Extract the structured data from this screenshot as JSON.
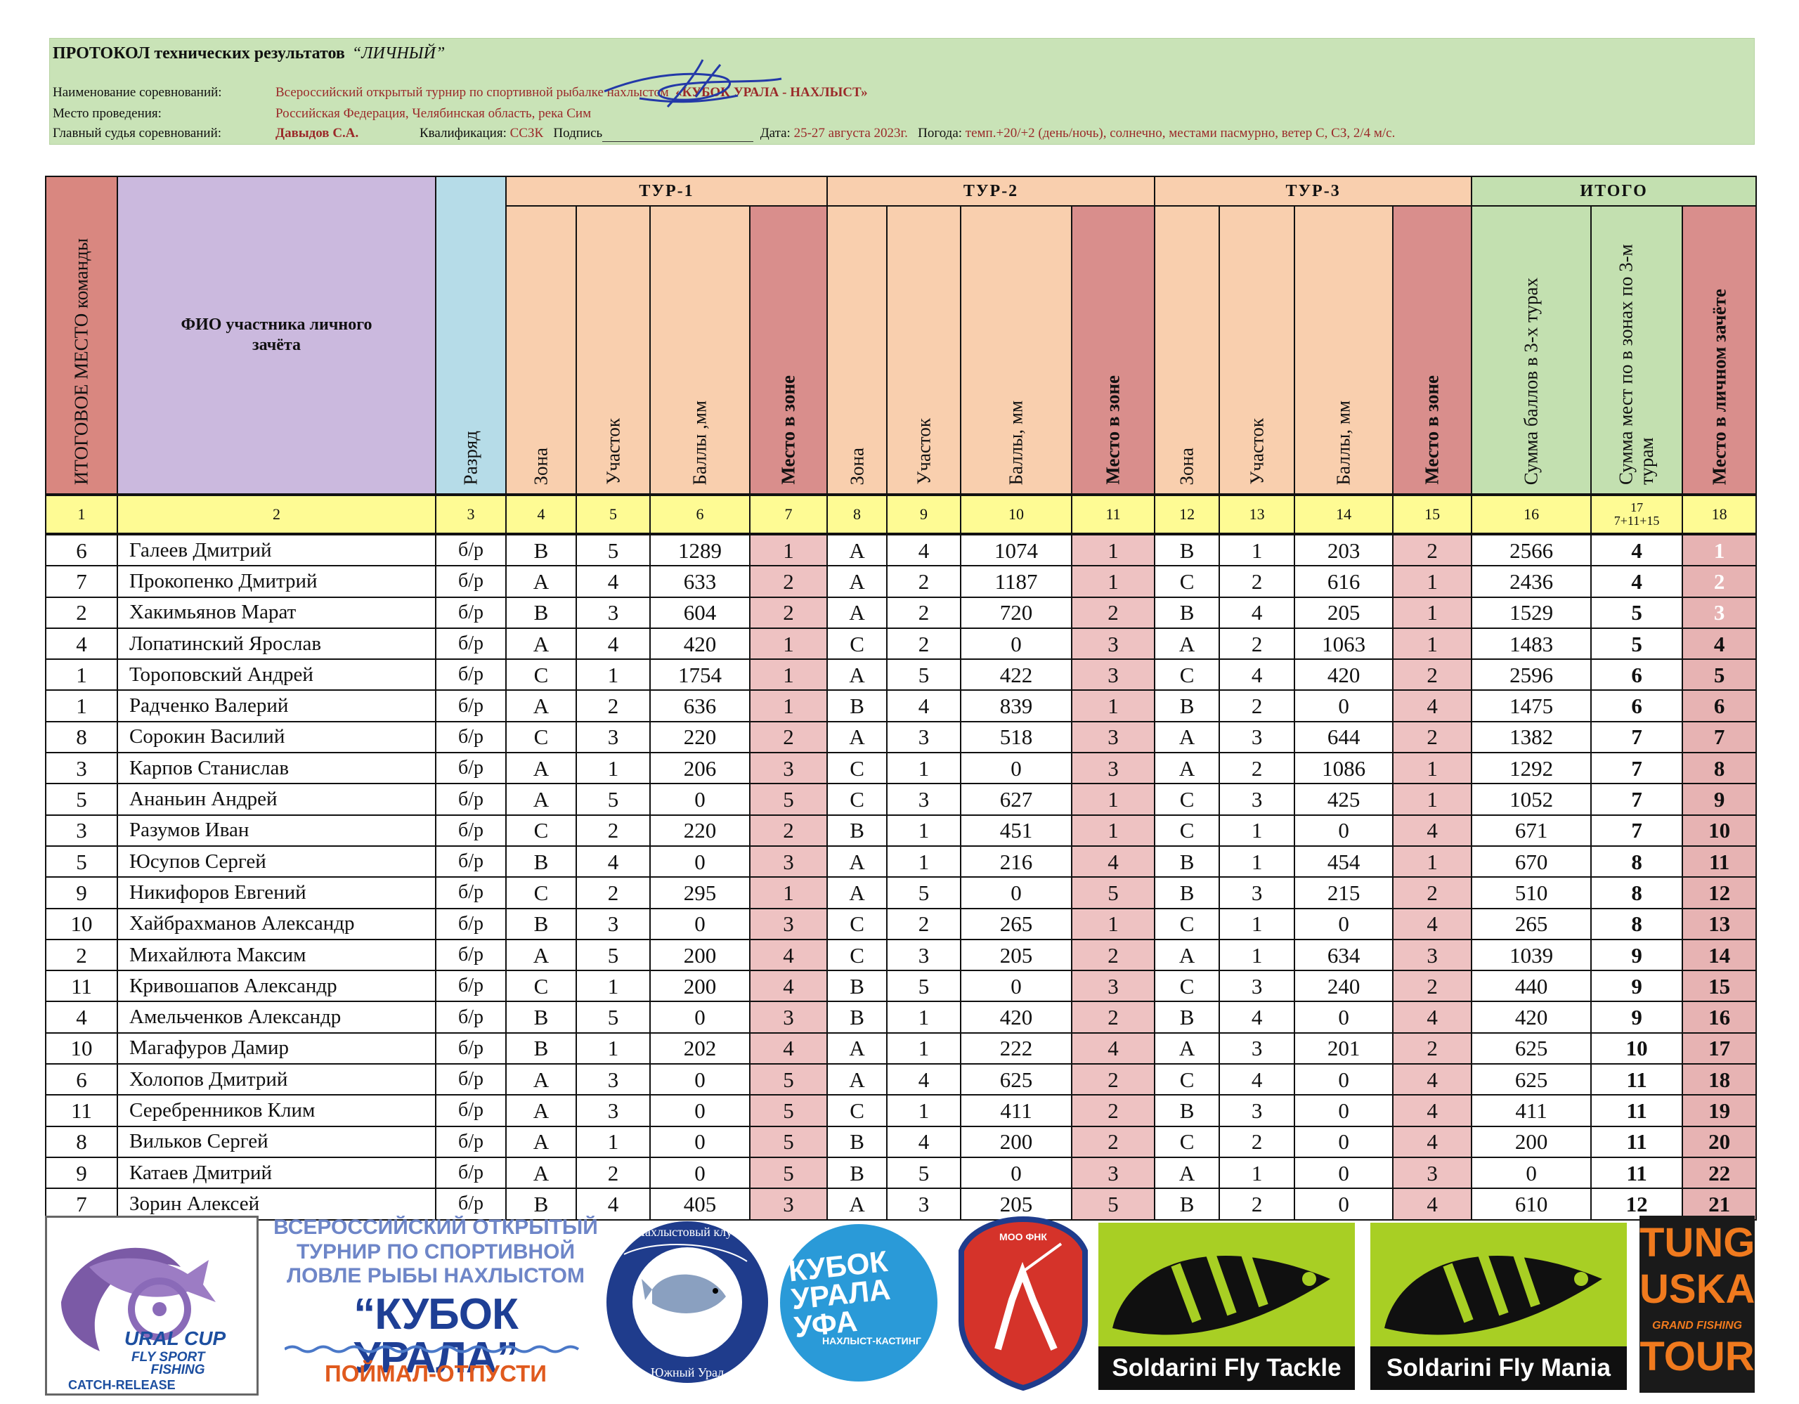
{
  "header": {
    "title_main": "ПРОТОКОЛ технических результатов",
    "title_type": "“ЛИЧНЫЙ”",
    "competition_label": "Наименование соревнований:",
    "competition_value": "Всероссийский открытый  турнир по спортивной рыбалке нахлыстом",
    "competition_name": "«КУБОК  УРАЛА - НАХЛЫСТ»",
    "place_label": "Место проведения:",
    "place_value": "Российская Федерация, Челябинская область, река Сим",
    "judge_label": "Главный судья соревнований:",
    "judge_value": "Давыдов С.А.",
    "qual_label": "Квалификация:",
    "qual_value": "ССЗК",
    "sign_label": "Подпись",
    "date_label": "Дата:",
    "date_value": "25-27 августа 2023г.",
    "weather_label": "Погода:",
    "weather_value": "темп.+20/+2 (день/ночь), солнечно, местами пасмурно, ветер  С, СЗ, 2/4 м/с."
  },
  "table": {
    "groups": {
      "tour1": "ТУР-1",
      "tour2": "ТУР-2",
      "tour3": "ТУР-3",
      "total": "ИТОГО"
    },
    "headers": {
      "team_place": "ИТОГОВОЕ МЕСТО команды",
      "fio": "ФИО участника личного зачёта",
      "razryad": "Разряд",
      "zone": "Зона",
      "uchastok": "Участок",
      "bally1": "Баллы ,мм",
      "bally": "Баллы, мм",
      "mesto_zone": "Место в зоне",
      "sum_points": "Сумма баллов в 3-х турах",
      "sum_places": "Сумма мест по  в зонах по 3-м турам",
      "final_place": "Место в личном зачёте"
    },
    "col_numbers": [
      "1",
      "2",
      "3",
      "4",
      "5",
      "6",
      "7",
      "8",
      "9",
      "10",
      "11",
      "12",
      "13",
      "14",
      "15",
      "16",
      "17",
      "18"
    ],
    "col17_formula": "7+11+15",
    "rows": [
      [
        "6",
        "Галеев Дмитрий",
        "б/р",
        "B",
        "5",
        "1289",
        "1",
        "A",
        "4",
        "1074",
        "1",
        "B",
        "1",
        "203",
        "2",
        "2566",
        "4",
        "1"
      ],
      [
        "7",
        "Прокопенко Дмитрий",
        "б/р",
        "A",
        "4",
        "633",
        "2",
        "A",
        "2",
        "1187",
        "1",
        "C",
        "2",
        "616",
        "1",
        "2436",
        "4",
        "2"
      ],
      [
        "2",
        "Хакимьянов Марат",
        "б/р",
        "B",
        "3",
        "604",
        "2",
        "A",
        "2",
        "720",
        "2",
        "B",
        "4",
        "205",
        "1",
        "1529",
        "5",
        "3"
      ],
      [
        "4",
        "Лопатинский Ярослав",
        "б/р",
        "A",
        "4",
        "420",
        "1",
        "C",
        "2",
        "0",
        "3",
        "A",
        "2",
        "1063",
        "1",
        "1483",
        "5",
        "4"
      ],
      [
        "1",
        "Тороповский Андрей",
        "б/р",
        "C",
        "1",
        "1754",
        "1",
        "A",
        "5",
        "422",
        "3",
        "C",
        "4",
        "420",
        "2",
        "2596",
        "6",
        "5"
      ],
      [
        "1",
        "Радченко Валерий",
        "б/р",
        "A",
        "2",
        "636",
        "1",
        "B",
        "4",
        "839",
        "1",
        "B",
        "2",
        "0",
        "4",
        "1475",
        "6",
        "6"
      ],
      [
        "8",
        "Сорокин Василий",
        "б/р",
        "C",
        "3",
        "220",
        "2",
        "A",
        "3",
        "518",
        "3",
        "A",
        "3",
        "644",
        "2",
        "1382",
        "7",
        "7"
      ],
      [
        "3",
        "Карпов Станислав",
        "б/р",
        "A",
        "1",
        "206",
        "3",
        "C",
        "1",
        "0",
        "3",
        "A",
        "2",
        "1086",
        "1",
        "1292",
        "7",
        "8"
      ],
      [
        "5",
        "Ананьин Андрей",
        "б/р",
        "A",
        "5",
        "0",
        "5",
        "C",
        "3",
        "627",
        "1",
        "C",
        "3",
        "425",
        "1",
        "1052",
        "7",
        "9"
      ],
      [
        "3",
        "Разумов Иван",
        "б/р",
        "C",
        "2",
        "220",
        "2",
        "B",
        "1",
        "451",
        "1",
        "C",
        "1",
        "0",
        "4",
        "671",
        "7",
        "10"
      ],
      [
        "5",
        "Юсупов Сергей",
        "б/р",
        "B",
        "4",
        "0",
        "3",
        "A",
        "1",
        "216",
        "4",
        "B",
        "1",
        "454",
        "1",
        "670",
        "8",
        "11"
      ],
      [
        "9",
        "Никифоров Евгений",
        "б/р",
        "C",
        "2",
        "295",
        "1",
        "A",
        "5",
        "0",
        "5",
        "B",
        "3",
        "215",
        "2",
        "510",
        "8",
        "12"
      ],
      [
        "10",
        "Хайбрахманов Александр",
        "б/р",
        "B",
        "3",
        "0",
        "3",
        "C",
        "2",
        "265",
        "1",
        "C",
        "1",
        "0",
        "4",
        "265",
        "8",
        "13"
      ],
      [
        "2",
        "Михайлюта Максим",
        "б/р",
        "A",
        "5",
        "200",
        "4",
        "C",
        "3",
        "205",
        "2",
        "A",
        "1",
        "634",
        "3",
        "1039",
        "9",
        "14"
      ],
      [
        "11",
        "Кривошапов Александр",
        "б/р",
        "C",
        "1",
        "200",
        "4",
        "B",
        "5",
        "0",
        "3",
        "C",
        "3",
        "240",
        "2",
        "440",
        "9",
        "15"
      ],
      [
        "4",
        "Амельченков Александр",
        "б/р",
        "B",
        "5",
        "0",
        "3",
        "B",
        "1",
        "420",
        "2",
        "B",
        "4",
        "0",
        "4",
        "420",
        "9",
        "16"
      ],
      [
        "10",
        "Магафуров Дамир",
        "б/р",
        "B",
        "1",
        "202",
        "4",
        "A",
        "1",
        "222",
        "4",
        "A",
        "3",
        "201",
        "2",
        "625",
        "10",
        "17"
      ],
      [
        "6",
        "Холопов Дмитрий",
        "б/р",
        "A",
        "3",
        "0",
        "5",
        "A",
        "4",
        "625",
        "2",
        "C",
        "4",
        "0",
        "4",
        "625",
        "11",
        "18"
      ],
      [
        "11",
        "Серебренников Клим",
        "б/р",
        "A",
        "3",
        "0",
        "5",
        "C",
        "1",
        "411",
        "2",
        "B",
        "3",
        "0",
        "4",
        "411",
        "11",
        "19"
      ],
      [
        "8",
        "Вильков Сергей",
        "б/р",
        "A",
        "1",
        "0",
        "5",
        "B",
        "4",
        "200",
        "2",
        "C",
        "2",
        "0",
        "4",
        "200",
        "11",
        "20"
      ],
      [
        "9",
        "Катаев Дмитрий",
        "б/р",
        "A",
        "2",
        "0",
        "5",
        "B",
        "5",
        "0",
        "3",
        "A",
        "1",
        "0",
        "3",
        "0",
        "11",
        "22"
      ],
      [
        "7",
        "Зорин Алексей",
        "б/р",
        "B",
        "4",
        "405",
        "3",
        "A",
        "3",
        "205",
        "5",
        "B",
        "2",
        "0",
        "4",
        "610",
        "12",
        "21"
      ]
    ]
  },
  "logos": {
    "ural_cup": {
      "line1": "URAL CUP",
      "line2": "FLY SPORT",
      "line3": "FISHING",
      "line4": "CATCH-RELEASE"
    },
    "kubok_urala": {
      "line1": "ВСЕРОССИЙСКИЙ ОТКРЫТЫЙ",
      "line2": "ТУРНИР ПО СПОРТИВНОЙ",
      "line3": "ЛОВЛЕ РЫБЫ НАХЛЫСТОМ",
      "line4": "“КУБОК УРАЛА”",
      "line5": "ПОЙМАЛ-ОТПУСТИ"
    },
    "club": {
      "top": "Нахлыстовый клуб",
      "bottom": "Южный Урал"
    },
    "kubok_ufa": {
      "line1": "КУБОК",
      "line2": "УРАЛА",
      "line3": "УФА",
      "line4": "НАХЛЫСТ-КАСТИНГ"
    },
    "moo": {
      "label": "МОО ФНК"
    },
    "soldarini1": "Soldarini Fly Tackle",
    "soldarini2": "Soldarini Fly Mania",
    "tunguska": {
      "line1": "TUNG",
      "line2": "USKA",
      "line3": "GRAND FISHING",
      "line4": "TOUR"
    }
  },
  "colors": {
    "header_bg": "#c9e3b7",
    "accent_red": "#9b2a2a",
    "tour_bg": "#f9cfae",
    "place_bg": "#d98e8c",
    "itogo_bg": "#c3e0b0",
    "numbers_bg": "#fefb94"
  }
}
